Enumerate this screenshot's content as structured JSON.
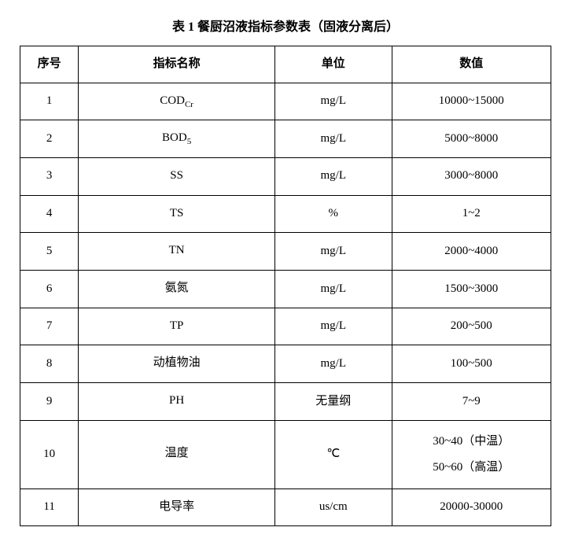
{
  "title": "表 1 餐厨沼液指标参数表（固液分离后）",
  "headers": {
    "seq": "序号",
    "name": "指标名称",
    "unit": "单位",
    "value": "数值"
  },
  "rows": [
    {
      "seq": "1",
      "name": "COD",
      "name_sub": "Cr",
      "unit": "mg/L",
      "value": "10000~15000"
    },
    {
      "seq": "2",
      "name": "BOD",
      "name_sub": "5",
      "unit": "mg/L",
      "value": "5000~8000"
    },
    {
      "seq": "3",
      "name": "SS",
      "name_sub": "",
      "unit": "mg/L",
      "value": "3000~8000"
    },
    {
      "seq": "4",
      "name": "TS",
      "name_sub": "",
      "unit": "%",
      "value": "1~2"
    },
    {
      "seq": "5",
      "name": "TN",
      "name_sub": "",
      "unit": "mg/L",
      "value": "2000~4000"
    },
    {
      "seq": "6",
      "name": "氨氮",
      "name_sub": "",
      "unit": "mg/L",
      "value": "1500~3000"
    },
    {
      "seq": "7",
      "name": "TP",
      "name_sub": "",
      "unit": "mg/L",
      "value": "200~500"
    },
    {
      "seq": "8",
      "name": "动植物油",
      "name_sub": "",
      "unit": "mg/L",
      "value": "100~500"
    },
    {
      "seq": "9",
      "name": "PH",
      "name_sub": "",
      "unit": "无量纲",
      "value": "7~9"
    },
    {
      "seq": "10",
      "name": "温度",
      "name_sub": "",
      "unit": "℃",
      "value": "30~40（中温）\n50~60（高温）"
    },
    {
      "seq": "11",
      "name": "电导率",
      "name_sub": "",
      "unit": "us/cm",
      "value": "20000-30000"
    }
  ],
  "style": {
    "background_color": "#ffffff",
    "text_color": "#000000",
    "border_color": "#000000",
    "title_fontsize": 16,
    "cell_fontsize": 15,
    "sub_fontsize": 11,
    "col_widths_pct": {
      "seq": 11,
      "name": 37,
      "unit": 22,
      "value": 30
    },
    "font_family": "SimSun"
  }
}
